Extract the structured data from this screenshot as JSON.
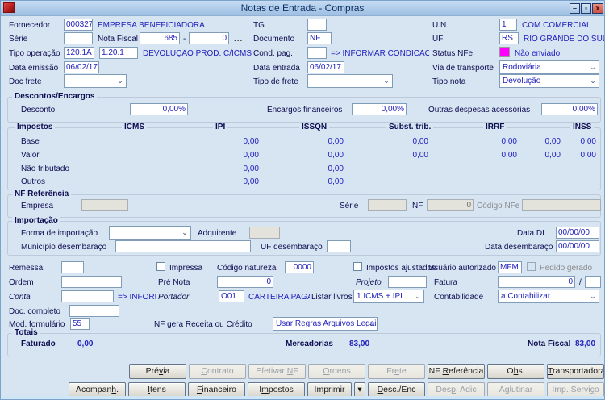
{
  "window": {
    "title": "Notas de Entrada - Compras",
    "controls": [
      {
        "name": "minimize",
        "glyph": "–"
      },
      {
        "name": "maximize",
        "glyph": "▫"
      },
      {
        "name": "close",
        "glyph": "x"
      }
    ]
  },
  "header": {
    "fornecedor": {
      "label": "Fornecedor",
      "code": "000327",
      "name": "EMPRESA BENEFICIADORA"
    },
    "serie": {
      "label": "Série",
      "value": ""
    },
    "nota_fiscal": {
      "label": "Nota Fiscal",
      "numero": "685",
      "separador": "-",
      "secundario": "0",
      "browse": "..."
    },
    "tg": {
      "label": "TG",
      "value": ""
    },
    "documento": {
      "label": "Documento",
      "value": "NF"
    },
    "un": {
      "label": "U.N.",
      "value": "1",
      "desc": "COM COMERCIAL"
    },
    "uf": {
      "label": "UF",
      "value": "RS",
      "desc": "RIO GRANDE DO SUL"
    },
    "tipo_operacao": {
      "label": "Tipo operação",
      "code1": "120.1A",
      "code2": "1.20.1",
      "desc": "DEVOLUÇÃO  PROD. C/ICMS C/IPI S,"
    },
    "cond_pag": {
      "label": "Cond. pag.",
      "value": "",
      "hint": "=> INFORMAR CONDICAO DE PA"
    },
    "status_nfe": {
      "label": "Status NFe",
      "text": "Não enviado",
      "color": "#ff00ff"
    },
    "data_emissao": {
      "label": "Data emissão",
      "value": "06/02/17"
    },
    "data_entrada": {
      "label": "Data entrada",
      "value": "06/02/17"
    },
    "via_transporte": {
      "label": "Via de transporte",
      "value": "Rodoviária"
    },
    "doc_frete": {
      "label": "Doc frete",
      "value": ""
    },
    "tipo_frete": {
      "label": "Tipo de frete",
      "value": ""
    },
    "tipo_nota": {
      "label": "Tipo nota",
      "value": "Devolução"
    }
  },
  "descontos": {
    "title": "Descontos/Encargos",
    "fields": [
      {
        "label": "Desconto",
        "value": "0,00%"
      },
      {
        "label": "Encargos financeiros",
        "value": "0,00%"
      },
      {
        "label": "Outras despesas acessórias",
        "value": "0,00%"
      }
    ]
  },
  "impostos": {
    "title": "Impostos",
    "columns": [
      "ICMS",
      "IPI",
      "ISSQN",
      "Subst. trib.",
      "IRRF",
      "INSS"
    ],
    "rows": [
      {
        "label": "Base",
        "values": [
          "0,00",
          "0,00",
          "0,00",
          "0,00",
          "0,00",
          "0,00"
        ]
      },
      {
        "label": "Valor",
        "values": [
          "0,00",
          "0,00",
          "0,00",
          "0,00",
          "0,00",
          "0,00"
        ]
      },
      {
        "label": "Não tributado",
        "values": [
          "0,00",
          "0,00",
          "",
          "",
          "",
          ""
        ]
      },
      {
        "label": "Outros",
        "values": [
          "0,00",
          "0,00",
          "",
          "",
          "",
          ""
        ]
      }
    ]
  },
  "nf_referencia": {
    "title": "NF Referência",
    "empresa_label": "Empresa",
    "empresa_value": "",
    "serie_label": "Série",
    "serie_value": "",
    "nf_label": "NF",
    "nf_value": "0",
    "codigo_nfe_label": "Código NFe",
    "codigo_nfe_value": ""
  },
  "importacao": {
    "title": "Importação",
    "forma_label": "Forma de importação",
    "forma_value": "",
    "adquirente_label": "Adquirente",
    "adquirente_value": "",
    "data_di_label": "Data DI",
    "data_di_value": "00/00/00",
    "municipio_label": "Município desembaraço",
    "municipio_value": "",
    "uf_label": "UF desembaraço",
    "uf_value": "",
    "data_desembaraco_label": "Data desembaraço",
    "data_desembaraco_value": "00/00/00"
  },
  "detalhes": {
    "remessa_label": "Remessa",
    "remessa_value": "",
    "impressa_label": "Impressa",
    "codigo_natureza_label": "Código natureza",
    "codigo_natureza_value": "0000",
    "impostos_ajustados_label": "Impostos ajustados",
    "usuario_label": "Usuário autorizado",
    "usuario_value": "MFM",
    "pedido_gerado_label": "Pedido gerado",
    "ordem_label": "Ordem",
    "ordem_value": "",
    "pre_nota_label": "Pré Nota",
    "pre_nota_value": "0",
    "projeto_label": "Projeto",
    "projeto_value": "",
    "fatura_label": "Fatura",
    "fatura_value": "0",
    "fatura_sep": "/",
    "fatura_parcela": "",
    "conta_label": "Conta",
    "conta_value": ". .",
    "conta_hint": "=> INFORMAR",
    "portador_label": "Portador",
    "portador_value": "O01",
    "portador_desc": "CARTEIRA PAGAMI",
    "listar_livros_label": "Listar livros",
    "listar_livros_value": "1 ICMS + IPI",
    "contabilidade_label": "Contabilidade",
    "contabilidade_value": "a Contabilizar",
    "doc_completo_label": "Doc. completo",
    "doc_completo_value": "",
    "mod_formulario_label": "Mod. formulário",
    "mod_formulario_value": "55",
    "nf_gera_label": "NF gera Receita ou Crédito",
    "nf_gera_value": "Usar Regras Arquivos Legais"
  },
  "totais": {
    "title": "Totais",
    "faturado_label": "Faturado",
    "faturado_value": "0,00",
    "mercadorias_label": "Mercadorias",
    "mercadorias_value": "83,00",
    "nota_fiscal_label": "Nota Fiscal",
    "nota_fiscal_value": "83,00"
  },
  "buttons": {
    "row1": [
      {
        "slug": "previa",
        "label": "Prévia",
        "accel": 3,
        "enabled": true
      },
      {
        "slug": "contrato",
        "label": "Contrato",
        "accel": 0,
        "enabled": false
      },
      {
        "slug": "efetivar-nf",
        "label": "Efetivar NF",
        "accel": 9,
        "enabled": false
      },
      {
        "slug": "ordens",
        "label": "Ordens",
        "accel": 0,
        "enabled": false
      },
      {
        "slug": "frete",
        "label": "Frete",
        "accel": 2,
        "enabled": false
      },
      {
        "slug": "nf-referencia",
        "label": "NF Referência",
        "accel": 3,
        "enabled": true
      },
      {
        "slug": "obs",
        "label": "Obs.",
        "accel": 1,
        "enabled": true
      },
      {
        "slug": "transportadora",
        "label": "Transportadora",
        "accel": 0,
        "enabled": true
      }
    ],
    "row2": [
      {
        "slug": "acompanh",
        "label": "Acompanh.",
        "accel": 7,
        "enabled": true
      },
      {
        "slug": "itens",
        "label": "Itens",
        "accel": 0,
        "enabled": true
      },
      {
        "slug": "financeiro",
        "label": "Financeiro",
        "accel": 0,
        "enabled": true
      },
      {
        "slug": "impostos",
        "label": "Impostos",
        "accel": 1,
        "enabled": true
      },
      {
        "slug": "imprimir",
        "label": "Imprimir",
        "accel": -1,
        "enabled": true
      },
      {
        "slug": "imprimir-drop",
        "label": "▾",
        "accel": -1,
        "enabled": true,
        "arrow": true
      },
      {
        "slug": "desc-enc",
        "label": "Desc./Enc",
        "accel": 0,
        "enabled": true
      },
      {
        "slug": "desp-adic",
        "label": "Desp. Adic",
        "accel": 3,
        "enabled": false
      },
      {
        "slug": "aglutinar",
        "label": "Aglutinar",
        "accel": 1,
        "enabled": false
      },
      {
        "slug": "imp-servico",
        "label": "Imp. Serviço",
        "accel": 10,
        "enabled": false
      }
    ]
  }
}
